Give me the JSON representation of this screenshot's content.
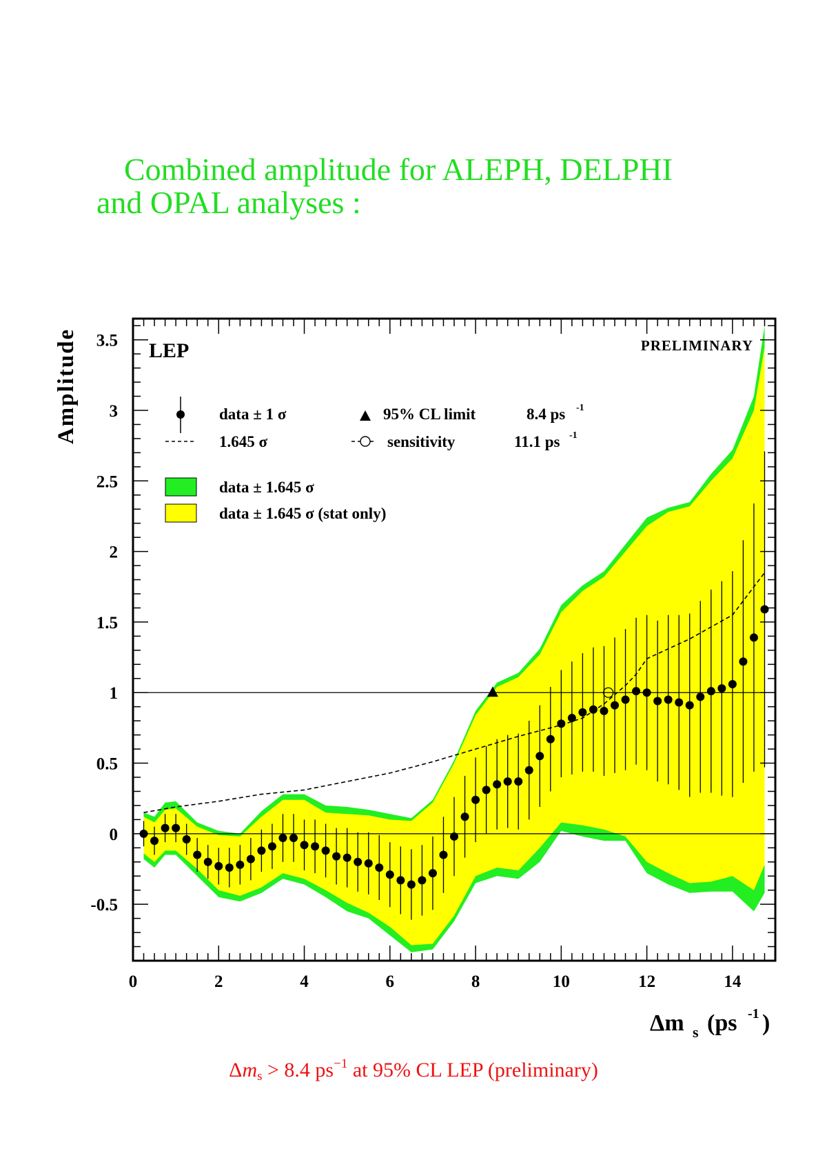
{
  "title": {
    "line1": "Combined amplitude for ALEPH, DELPHI",
    "line2": "and OPAL analyses :"
  },
  "footer": {
    "part1": "Δ",
    "m": "m",
    "s": "s",
    "part2": " > 8.4 ps",
    "exp": "−1",
    "part3": " at 95% CL LEP (preliminary)"
  },
  "colors": {
    "band_total": "#22ee22",
    "band_stat": "#ffff00",
    "title": "#22dd22",
    "footer": "#ee1111"
  },
  "chart_data": {
    "type": "scatter",
    "experiment_label": "LEP",
    "status_label": "PRELIMINARY",
    "ylabel": "Amplitude",
    "xlabel_main": "Δm",
    "xlabel_sub": "s",
    "xlabel_unit": "(ps",
    "xlabel_exp": "-1",
    "xlabel_close": ")",
    "xlim": [
      0,
      15
    ],
    "ylim": [
      -0.9,
      3.65
    ],
    "xticks": [
      0,
      2,
      4,
      6,
      8,
      10,
      12,
      14
    ],
    "xtick_labels": [
      "0",
      "2",
      "4",
      "6",
      "8",
      "10",
      "12",
      "14"
    ],
    "yticks": [
      -0.5,
      0,
      0.5,
      1,
      1.5,
      2,
      2.5,
      3,
      3.5
    ],
    "ytick_labels": [
      "-0.5",
      "0",
      "0.5",
      "1",
      "1.5",
      "2",
      "2.5",
      "3",
      "3.5"
    ],
    "reference_lines": [
      0,
      1
    ],
    "legend": {
      "data_label": "data ± 1 σ",
      "dashed_label": "1.645 σ",
      "limit_label": "95% CL limit",
      "limit_value": "8.4 ps",
      "sensitivity_label": "sensitivity",
      "sensitivity_value": "11.1 ps",
      "exp": "-1",
      "band_total_label": "data ± 1.645 σ",
      "band_stat_label": "data ± 1.645 σ (stat only)"
    },
    "limit_marker": {
      "x": 8.4,
      "y": 1.0
    },
    "sensitivity_marker": {
      "x": 11.1,
      "y": 1.0
    },
    "points": {
      "x": [
        0.25,
        0.5,
        0.75,
        1.0,
        1.25,
        1.5,
        1.75,
        2.0,
        2.25,
        2.5,
        2.75,
        3.0,
        3.25,
        3.5,
        3.75,
        4.0,
        4.25,
        4.5,
        4.75,
        5.0,
        5.25,
        5.5,
        5.75,
        6.0,
        6.25,
        6.5,
        6.75,
        7.0,
        7.25,
        7.5,
        7.75,
        8.0,
        8.25,
        8.5,
        8.75,
        9.0,
        9.25,
        9.5,
        9.75,
        10.0,
        10.25,
        10.5,
        10.75,
        11.0,
        11.25,
        11.5,
        11.75,
        12.0,
        12.25,
        12.5,
        12.75,
        13.0,
        13.25,
        13.5,
        13.75,
        14.0,
        14.25,
        14.5,
        14.75
      ],
      "y": [
        0.0,
        -0.05,
        0.04,
        0.04,
        -0.04,
        -0.15,
        -0.2,
        -0.23,
        -0.24,
        -0.22,
        -0.18,
        -0.12,
        -0.09,
        -0.03,
        -0.03,
        -0.08,
        -0.09,
        -0.12,
        -0.16,
        -0.17,
        -0.2,
        -0.21,
        -0.24,
        -0.29,
        -0.33,
        -0.36,
        -0.33,
        -0.28,
        -0.15,
        -0.02,
        0.12,
        0.24,
        0.31,
        0.35,
        0.37,
        0.37,
        0.45,
        0.55,
        0.67,
        0.78,
        0.82,
        0.86,
        0.88,
        0.87,
        0.91,
        0.95,
        1.01,
        1.0,
        0.94,
        0.95,
        0.93,
        0.91,
        0.97,
        1.01,
        1.03,
        1.06,
        1.22,
        1.39,
        1.59
      ],
      "err": [
        0.09,
        0.1,
        0.1,
        0.1,
        0.11,
        0.12,
        0.12,
        0.13,
        0.14,
        0.14,
        0.15,
        0.15,
        0.16,
        0.17,
        0.17,
        0.18,
        0.19,
        0.19,
        0.2,
        0.21,
        0.21,
        0.22,
        0.23,
        0.23,
        0.24,
        0.25,
        0.25,
        0.26,
        0.27,
        0.28,
        0.29,
        0.3,
        0.31,
        0.32,
        0.33,
        0.34,
        0.35,
        0.36,
        0.37,
        0.38,
        0.4,
        0.42,
        0.44,
        0.46,
        0.48,
        0.5,
        0.52,
        0.55,
        0.57,
        0.6,
        0.62,
        0.65,
        0.68,
        0.72,
        0.76,
        0.8,
        0.86,
        0.95,
        1.12
      ]
    },
    "sigma_1645_line": {
      "x": [
        0.25,
        1.0,
        2.0,
        3.0,
        4.0,
        5.0,
        6.0,
        7.0,
        8.0,
        9.0,
        10.0,
        10.5,
        11.0,
        11.5,
        11.75,
        12.0,
        13.0,
        14.0,
        14.75
      ],
      "y": [
        0.15,
        0.19,
        0.23,
        0.28,
        0.31,
        0.37,
        0.43,
        0.51,
        0.6,
        0.69,
        0.77,
        0.82,
        0.92,
        1.05,
        1.13,
        1.24,
        1.38,
        1.55,
        1.85
      ]
    },
    "band_total": {
      "x": [
        0.25,
        0.5,
        0.75,
        1.0,
        1.5,
        2.0,
        2.5,
        3.0,
        3.5,
        4.0,
        4.5,
        5.0,
        5.5,
        6.0,
        6.5,
        7.0,
        7.5,
        8.0,
        8.5,
        9.0,
        9.5,
        10.0,
        10.5,
        11.0,
        11.5,
        12.0,
        12.5,
        13.0,
        13.5,
        14.0,
        14.5,
        14.75
      ],
      "upper": [
        0.15,
        0.12,
        0.22,
        0.23,
        0.08,
        0.02,
        0.0,
        0.16,
        0.28,
        0.28,
        0.2,
        0.19,
        0.17,
        0.14,
        0.11,
        0.24,
        0.52,
        0.87,
        1.07,
        1.14,
        1.31,
        1.62,
        1.76,
        1.86,
        2.05,
        2.24,
        2.31,
        2.35,
        2.55,
        2.72,
        3.1,
        3.6
      ],
      "lower": [
        -0.18,
        -0.24,
        -0.15,
        -0.15,
        -0.3,
        -0.45,
        -0.48,
        -0.42,
        -0.32,
        -0.36,
        -0.45,
        -0.55,
        -0.6,
        -0.72,
        -0.84,
        -0.82,
        -0.62,
        -0.35,
        -0.3,
        -0.32,
        -0.2,
        0.02,
        -0.02,
        -0.05,
        -0.05,
        -0.28,
        -0.36,
        -0.42,
        -0.41,
        -0.41,
        -0.55,
        -0.42
      ]
    },
    "band_stat": {
      "x": [
        0.25,
        0.5,
        0.75,
        1.0,
        1.5,
        2.0,
        2.5,
        3.0,
        3.5,
        4.0,
        4.5,
        5.0,
        5.5,
        6.0,
        6.5,
        7.0,
        7.5,
        8.0,
        8.5,
        9.0,
        9.5,
        10.0,
        10.5,
        11.0,
        11.5,
        12.0,
        12.5,
        13.0,
        13.5,
        14.0,
        14.5,
        14.75
      ],
      "upper": [
        0.12,
        0.08,
        0.17,
        0.18,
        0.05,
        -0.01,
        -0.02,
        0.12,
        0.24,
        0.24,
        0.15,
        0.14,
        0.13,
        0.1,
        0.09,
        0.22,
        0.5,
        0.84,
        1.04,
        1.11,
        1.27,
        1.57,
        1.72,
        1.82,
        2.0,
        2.18,
        2.28,
        2.32,
        2.5,
        2.66,
        3.0,
        3.45
      ],
      "lower": [
        -0.14,
        -0.2,
        -0.12,
        -0.12,
        -0.25,
        -0.4,
        -0.44,
        -0.38,
        -0.28,
        -0.32,
        -0.4,
        -0.49,
        -0.56,
        -0.66,
        -0.79,
        -0.78,
        -0.58,
        -0.3,
        -0.24,
        -0.26,
        -0.1,
        0.08,
        0.06,
        0.03,
        -0.02,
        -0.2,
        -0.28,
        -0.35,
        -0.34,
        -0.3,
        -0.4,
        -0.22
      ]
    }
  }
}
